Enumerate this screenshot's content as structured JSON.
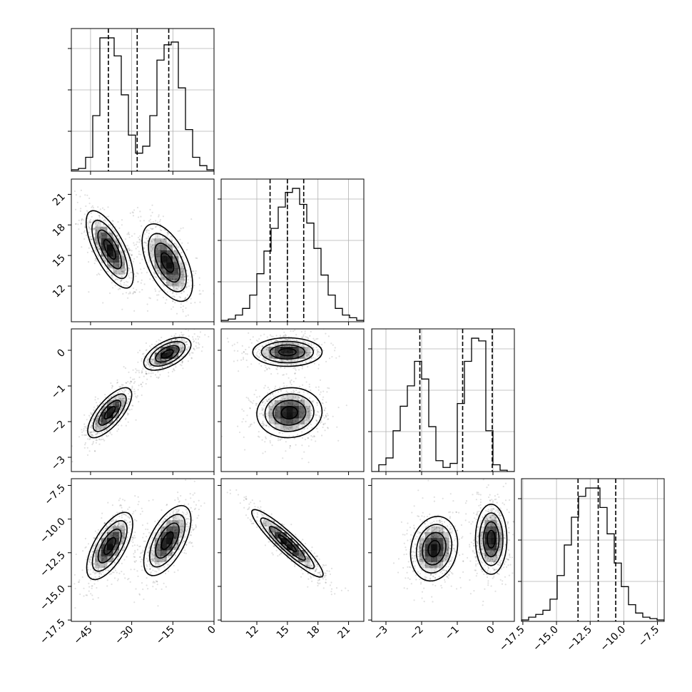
{
  "chart_data": {
    "type": "corner",
    "params": [
      {
        "ticks": [
          -45,
          -30,
          -15,
          0
        ],
        "tick_labels": [
          "−45",
          "−30",
          "−15",
          "0"
        ],
        "range": [
          -52,
          0
        ],
        "modes": [
          {
            "mean": -39,
            "sd": 3.7,
            "weight": 0.5
          },
          {
            "mean": -16,
            "sd": 4.0,
            "weight": 0.5
          }
        ],
        "quantiles": [
          -38.5,
          -28.0,
          -16.5
        ],
        "hist_counts": [
          0.01,
          0.02,
          0.1,
          0.4,
          0.96,
          0.96,
          0.83,
          0.55,
          0.26,
          0.13,
          0.18,
          0.4,
          0.8,
          0.91,
          0.93,
          0.6,
          0.3,
          0.1,
          0.04,
          0.01
        ]
      },
      {
        "ticks": [
          12,
          15,
          18,
          21
        ],
        "tick_labels": [
          "12",
          "15",
          "18",
          "21"
        ],
        "range": [
          8.5,
          22.5
        ],
        "modes": [
          {
            "mean": 15.0,
            "sd": 1.6,
            "weight": 1.0
          }
        ],
        "quantiles": [
          13.3,
          15.0,
          16.6
        ],
        "hist_counts": [
          0.01,
          0.02,
          0.05,
          0.1,
          0.2,
          0.36,
          0.53,
          0.7,
          0.86,
          0.97,
          1.0,
          0.88,
          0.74,
          0.55,
          0.35,
          0.2,
          0.1,
          0.05,
          0.03,
          0.01
        ]
      },
      {
        "ticks": [
          -3,
          -2,
          -1,
          0
        ],
        "tick_labels": [
          "−3",
          "−2",
          "−1",
          "0"
        ],
        "range": [
          -3.4,
          0.6
        ],
        "modes": [
          {
            "mean": -1.65,
            "sd": 0.33,
            "weight": 0.5
          },
          {
            "mean": -0.05,
            "sd": 0.22,
            "weight": 0.5
          }
        ],
        "quantiles": [
          -2.05,
          -0.85,
          -0.02
        ],
        "hist_counts": [
          0.0,
          0.05,
          0.1,
          0.3,
          0.48,
          0.63,
          0.81,
          0.68,
          0.33,
          0.08,
          0.03,
          0.06,
          0.5,
          0.81,
          0.98,
          0.96,
          0.3,
          0.05,
          0.01,
          0.0
        ]
      },
      {
        "ticks": [
          -17.5,
          -15.0,
          -12.5,
          -10.0,
          -7.5
        ],
        "tick_labels": [
          "−17.5",
          "−15.0",
          "−12.5",
          "−10.0",
          "−7.5"
        ],
        "range": [
          -17.6,
          -7.0
        ],
        "modes": [
          {
            "mean": -11.9,
            "sd": 1.2,
            "weight": 1.0
          }
        ],
        "quantiles": [
          -13.4,
          -11.9,
          -10.6
        ],
        "hist_counts": [
          0.01,
          0.03,
          0.05,
          0.08,
          0.16,
          0.33,
          0.55,
          0.75,
          0.9,
          0.96,
          0.96,
          0.82,
          0.63,
          0.42,
          0.25,
          0.12,
          0.06,
          0.03,
          0.02,
          0.01
        ]
      }
    ],
    "pairs": [
      {
        "x": 0,
        "y": 1,
        "blobs": [
          {
            "cx": -38,
            "cy": 15.6,
            "sx": 4.3,
            "sy": 1.9,
            "rho": -0.7
          },
          {
            "cx": -17,
            "cy": 14.3,
            "sx": 4.6,
            "sy": 1.9,
            "rho": -0.55
          }
        ]
      },
      {
        "x": 0,
        "y": 2,
        "blobs": [
          {
            "cx": -38,
            "cy": -1.75,
            "sx": 4.0,
            "sy": 0.35,
            "rho": 0.72
          },
          {
            "cx": -17,
            "cy": -0.1,
            "sx": 4.3,
            "sy": 0.23,
            "rho": 0.55
          }
        ]
      },
      {
        "x": 1,
        "y": 2,
        "blobs": [
          {
            "cx": 15.0,
            "cy": -0.05,
            "sx": 1.7,
            "sy": 0.2,
            "rho": 0.0
          },
          {
            "cx": 15.2,
            "cy": -1.75,
            "sx": 1.6,
            "sy": 0.35,
            "rho": 0.05
          }
        ]
      },
      {
        "x": 0,
        "y": 3,
        "blobs": [
          {
            "cx": -38,
            "cy": -12.0,
            "sx": 4.2,
            "sy": 1.25,
            "rho": 0.65
          },
          {
            "cx": -17,
            "cy": -11.6,
            "sx": 4.3,
            "sy": 1.3,
            "rho": 0.6
          }
        ]
      },
      {
        "x": 1,
        "y": 3,
        "blobs": [
          {
            "cx": 15.0,
            "cy": -11.8,
            "sx": 1.75,
            "sy": 1.25,
            "rho": -0.92
          }
        ]
      },
      {
        "x": 2,
        "y": 3,
        "blobs": [
          {
            "cx": -1.65,
            "cy": -12.2,
            "sx": 0.33,
            "sy": 1.2,
            "rho": 0.15
          },
          {
            "cx": -0.05,
            "cy": -11.5,
            "sx": 0.22,
            "sy": 1.3,
            "rho": 0.0
          }
        ]
      }
    ]
  }
}
